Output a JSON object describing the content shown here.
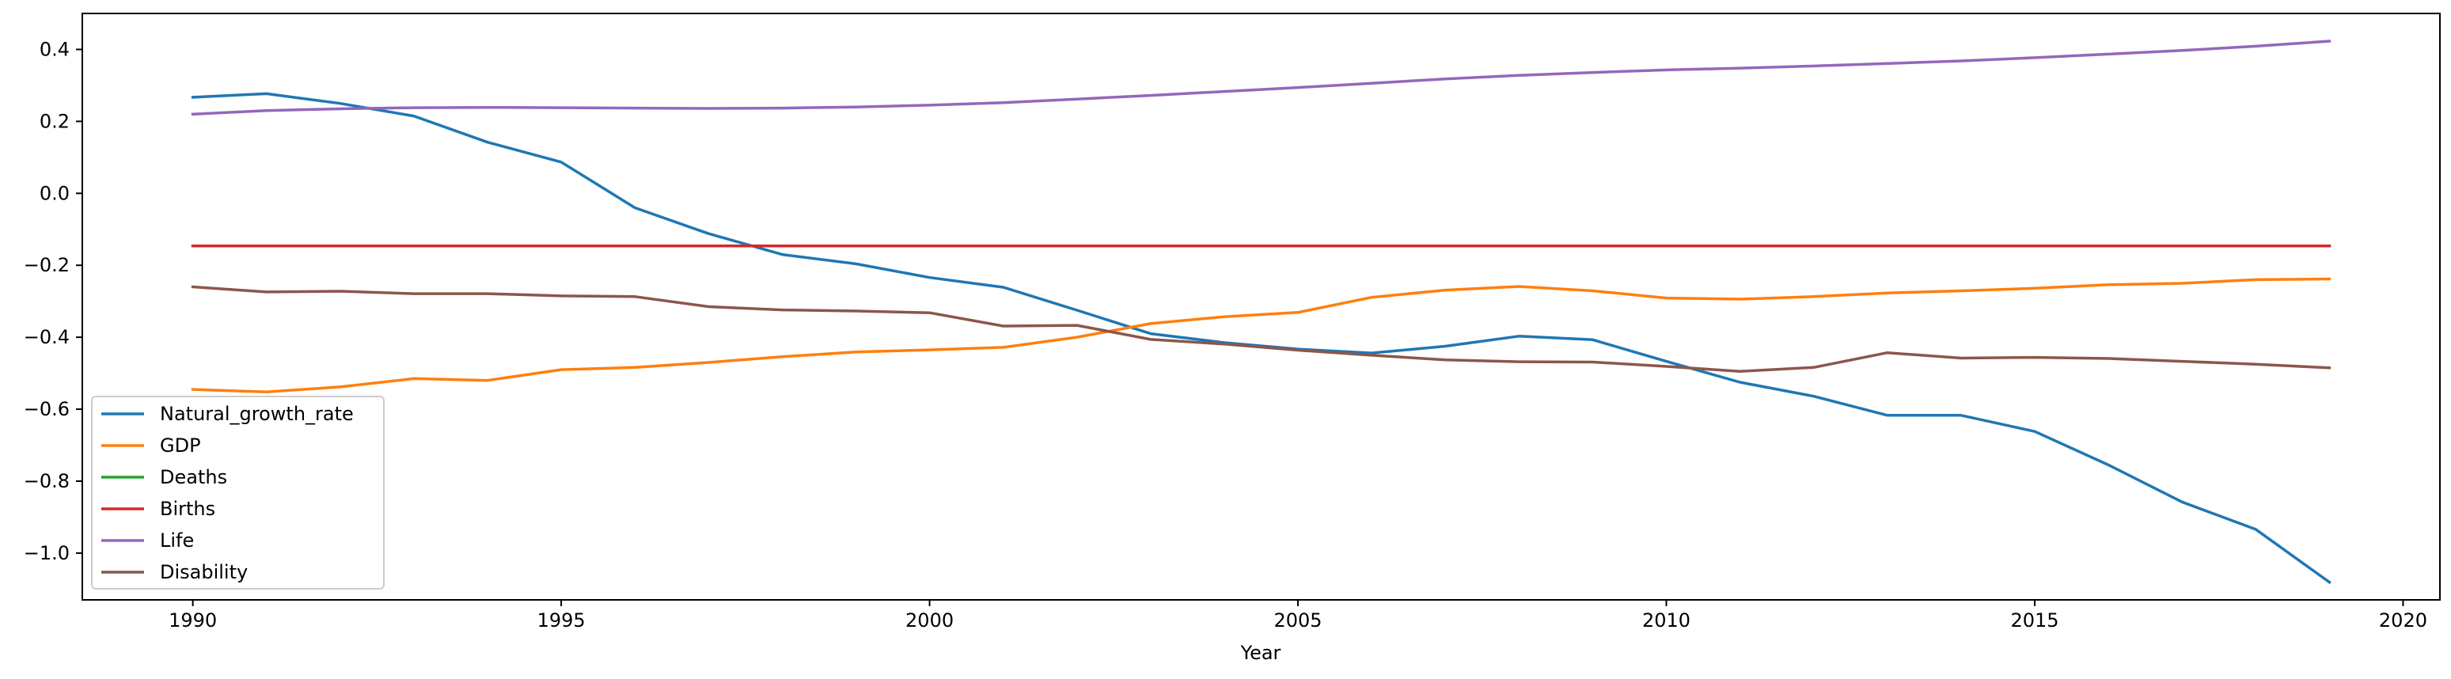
{
  "chart_data": {
    "type": "line",
    "xlabel": "Year",
    "ylabel": "",
    "xlim": [
      1988.5,
      2020.5
    ],
    "ylim": [
      -1.13,
      0.5
    ],
    "xticks": [
      1990,
      1995,
      2000,
      2005,
      2010,
      2015,
      2020
    ],
    "yticks": [
      0.4,
      0.2,
      0.0,
      -0.2,
      -0.4,
      -0.6,
      -0.8,
      -1.0
    ],
    "ytick_labels": [
      "0.4",
      "0.2",
      "0.0",
      "−0.2",
      "−0.4",
      "−0.6",
      "−0.8",
      "−1.0"
    ],
    "grid": false,
    "legend_position": "lower-left",
    "x": [
      1990,
      1991,
      1992,
      1993,
      1994,
      1995,
      1996,
      1997,
      1998,
      1999,
      2000,
      2001,
      2002,
      2003,
      2004,
      2005,
      2006,
      2007,
      2008,
      2009,
      2010,
      2011,
      2012,
      2013,
      2014,
      2015,
      2016,
      2017,
      2018,
      2019
    ],
    "series": [
      {
        "name": "Natural_growth_rate",
        "color": "#1f77b4",
        "values": [
          0.267,
          0.277,
          0.25,
          0.215,
          0.142,
          0.087,
          -0.04,
          -0.112,
          -0.17,
          -0.196,
          -0.234,
          -0.261,
          -0.325,
          -0.39,
          -0.415,
          -0.433,
          -0.444,
          -0.425,
          -0.397,
          -0.407,
          -0.467,
          -0.525,
          -0.564,
          -0.617,
          -0.617,
          -0.662,
          -0.755,
          -0.858,
          -0.934,
          -1.081
        ]
      },
      {
        "name": "GDP",
        "color": "#ff7f0e",
        "values": [
          -0.545,
          -0.552,
          -0.538,
          -0.515,
          -0.52,
          -0.49,
          -0.484,
          -0.47,
          -0.454,
          -0.441,
          -0.435,
          -0.428,
          -0.4,
          -0.362,
          -0.343,
          -0.331,
          -0.289,
          -0.269,
          -0.259,
          -0.271,
          -0.291,
          -0.294,
          -0.287,
          -0.277,
          -0.271,
          -0.264,
          -0.254,
          -0.25,
          -0.24,
          -0.238
        ]
      },
      {
        "name": "Deaths",
        "color": "#2ca02c",
        "values": [
          -0.146,
          -0.146,
          -0.146,
          -0.146,
          -0.146,
          -0.146,
          -0.146,
          -0.146,
          -0.146,
          -0.146,
          -0.146,
          -0.146,
          -0.146,
          -0.146,
          -0.146,
          -0.146,
          -0.146,
          -0.146,
          -0.146,
          -0.146,
          -0.146,
          -0.146,
          -0.146,
          -0.146,
          -0.146,
          -0.146,
          -0.146,
          -0.146,
          -0.146,
          -0.146
        ]
      },
      {
        "name": "Births",
        "color": "#d62728",
        "values": [
          -0.146,
          -0.146,
          -0.146,
          -0.146,
          -0.146,
          -0.146,
          -0.146,
          -0.146,
          -0.146,
          -0.146,
          -0.146,
          -0.146,
          -0.146,
          -0.146,
          -0.146,
          -0.146,
          -0.146,
          -0.146,
          -0.146,
          -0.146,
          -0.146,
          -0.146,
          -0.146,
          -0.146,
          -0.146,
          -0.146,
          -0.146,
          -0.146,
          -0.146,
          -0.146
        ]
      },
      {
        "name": "Life",
        "color": "#9467bd",
        "values": [
          0.22,
          0.23,
          0.235,
          0.238,
          0.239,
          0.238,
          0.237,
          0.236,
          0.237,
          0.24,
          0.245,
          0.252,
          0.262,
          0.272,
          0.283,
          0.294,
          0.306,
          0.318,
          0.328,
          0.336,
          0.343,
          0.348,
          0.354,
          0.361,
          0.368,
          0.377,
          0.387,
          0.397,
          0.409,
          0.423
        ]
      },
      {
        "name": "Disability",
        "color": "#8c564b",
        "values": [
          -0.26,
          -0.274,
          -0.272,
          -0.279,
          -0.279,
          -0.285,
          -0.287,
          -0.315,
          -0.324,
          -0.327,
          -0.332,
          -0.369,
          -0.367,
          -0.406,
          -0.419,
          -0.436,
          -0.45,
          -0.463,
          -0.468,
          -0.469,
          -0.481,
          -0.495,
          -0.484,
          -0.443,
          -0.458,
          -0.456,
          -0.459,
          -0.467,
          -0.475,
          -0.485
        ]
      }
    ]
  }
}
